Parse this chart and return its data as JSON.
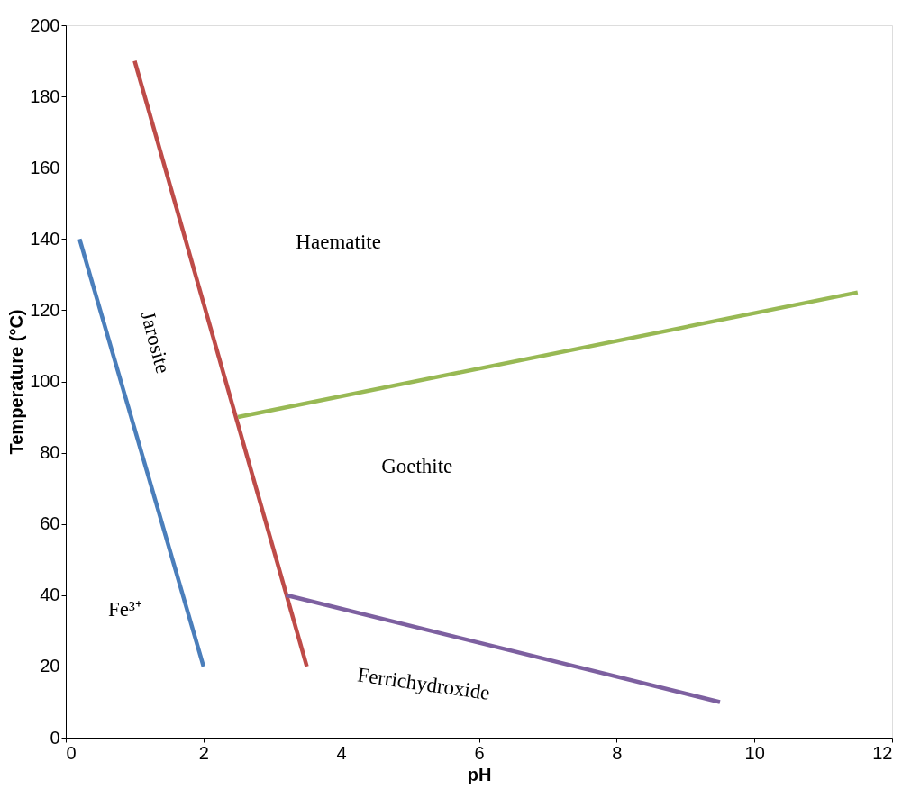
{
  "chart_data": {
    "type": "line",
    "xlabel": "pH",
    "ylabel": "Temperature (°C)",
    "xlim": [
      0,
      12
    ],
    "xticks": [
      0,
      2,
      4,
      6,
      8,
      10,
      12
    ],
    "ylim": [
      0,
      200
    ],
    "yticks": [
      0,
      20,
      40,
      60,
      80,
      100,
      120,
      140,
      160,
      180,
      200
    ],
    "grid": false,
    "legend": false,
    "marker": "none",
    "line_style": "solid",
    "series": [
      {
        "color": "#4a7ebb",
        "x": [
          0.2,
          2
        ],
        "values": [
          140,
          20
        ]
      },
      {
        "color": "#be4b48",
        "x": [
          1,
          3.5
        ],
        "values": [
          190,
          20
        ]
      },
      {
        "color": "#98b954",
        "x": [
          2.5,
          11.5
        ],
        "values": [
          90,
          125
        ]
      },
      {
        "color": "#7d60a0",
        "x": [
          3.2,
          9.5
        ],
        "values": [
          40,
          10
        ]
      }
    ],
    "annotations": [
      "Haematite",
      "Jarosite",
      "Goethite",
      "Fe³⁺",
      "Ferrichydroxide"
    ]
  }
}
